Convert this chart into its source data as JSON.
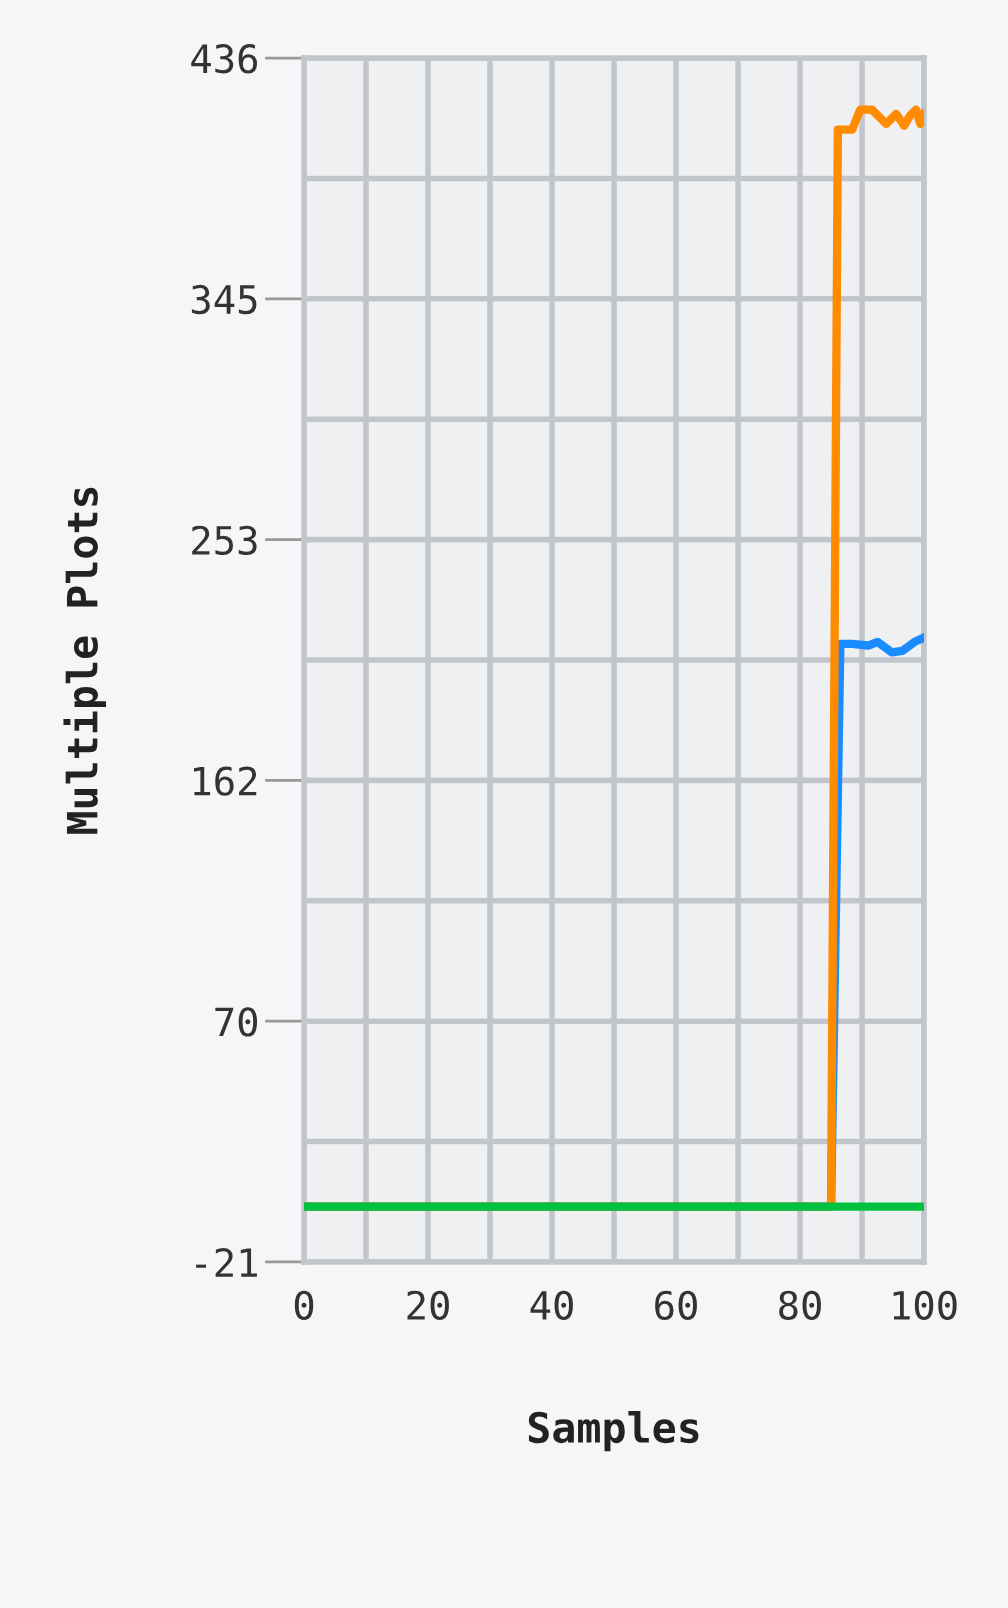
{
  "chart_data": {
    "type": "line",
    "xlabel": "Samples",
    "ylabel": "Multiple Plots",
    "xlim": [
      0,
      100
    ],
    "xticks": [
      0,
      {
        "value": 10,
        "label": null
      },
      20,
      {
        "value": 30,
        "label": null
      },
      40,
      {
        "value": 50,
        "label": null
      },
      60,
      {
        "value": 70,
        "label": null
      },
      80,
      {
        "value": 90,
        "label": null
      },
      100
    ],
    "ylim": [
      -21,
      436
    ],
    "yticks": [
      {
        "value": -21.0,
        "label": "-21"
      },
      {
        "value": 24.7,
        "label": null
      },
      {
        "value": 70.4,
        "label": "70"
      },
      {
        "value": 116.1,
        "label": null
      },
      {
        "value": 161.8,
        "label": "162"
      },
      {
        "value": 207.5,
        "label": null
      },
      {
        "value": 253.2,
        "label": "253"
      },
      {
        "value": 298.9,
        "label": null
      },
      {
        "value": 344.6,
        "label": "345"
      },
      {
        "value": 390.3,
        "label": null
      },
      436
    ],
    "grid": true,
    "legend": false,
    "marker": "none",
    "line_style": "solid",
    "series": [
      {
        "color": "#1a8cff",
        "x": [
          0,
          85,
          86.5,
          88.4,
          91,
          92.5,
          94.8,
          96.5,
          98.5,
          100
        ],
        "values": [
          0,
          0,
          213.6,
          213.6,
          213,
          214.4,
          210.4,
          211,
          214.4,
          216
        ]
      },
      {
        "color": "#ff8c00",
        "x": [
          0,
          85,
          86.1,
          88.4,
          89.7,
          91.6,
          93.9,
          95.5,
          96.8,
          97.7,
          98.7,
          99.4,
          100
        ],
        "values": [
          0,
          0,
          408.8,
          408.8,
          416.4,
          416.4,
          411,
          414.8,
          410.3,
          414,
          416.4,
          411,
          414.8
        ]
      },
      {
        "color": "#00c040",
        "x": [
          0,
          100
        ],
        "values": [
          0,
          0
        ]
      }
    ]
  }
}
